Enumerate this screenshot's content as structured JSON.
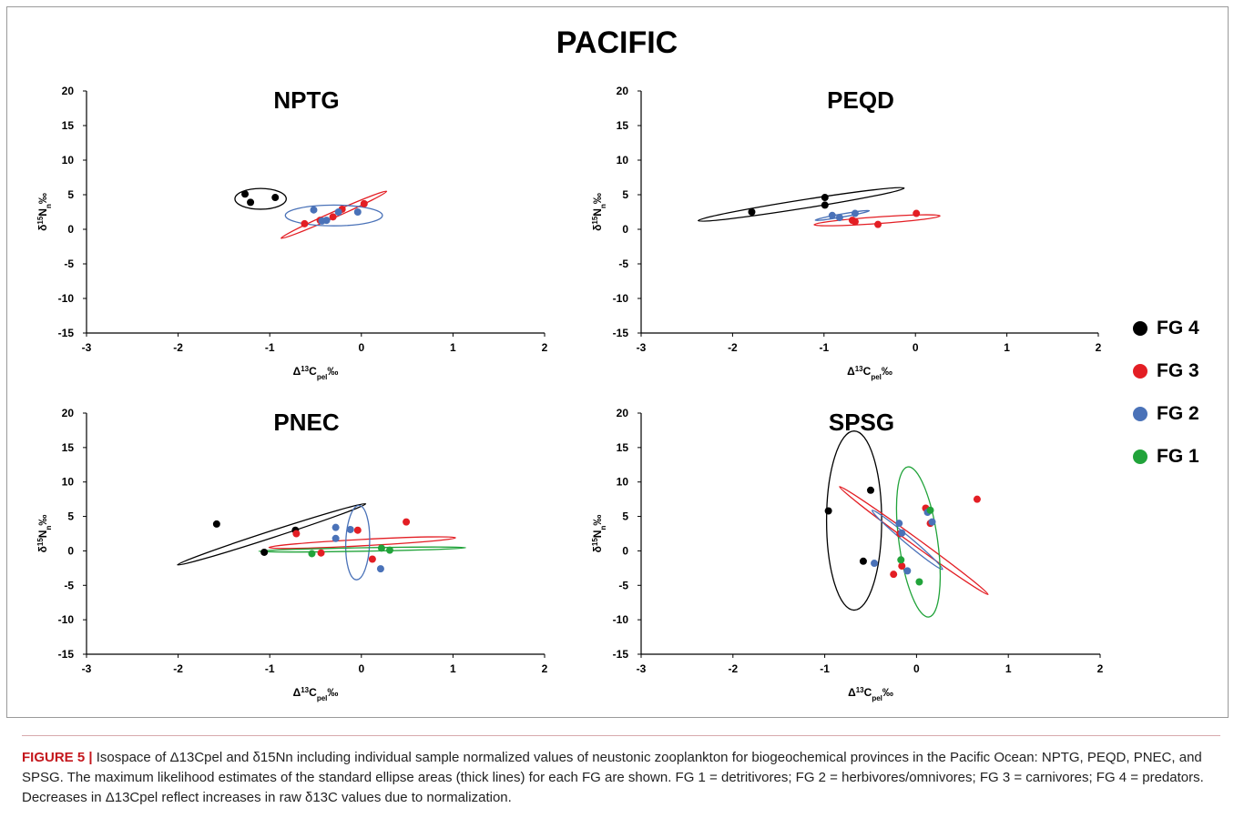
{
  "figure_title": "PACIFIC",
  "legend": [
    {
      "label": "FG 4",
      "color": "#000000"
    },
    {
      "label": "FG 3",
      "color": "#e31e24"
    },
    {
      "label": "FG 2",
      "color": "#4a72b8"
    },
    {
      "label": "FG 1",
      "color": "#21a33a"
    }
  ],
  "caption": {
    "label": "FIGURE 5",
    "separator": "|",
    "text": "Isospace of Δ13Cpel and δ15Nn including individual sample normalized values of neustonic zooplankton for biogeochemical provinces in the Pacific Ocean: NPTG, PEQD, PNEC, and SPSG. The maximum likelihood estimates of the standard ellipse areas (thick lines) for each FG are shown. FG 1 = detritivores; FG 2 = herbivores/omnivores; FG 3 = carnivores; FG 4 = predators. Decreases in Δ13Cpel reflect increases in raw δ13C values due to normalization."
  },
  "chart_data": [
    {
      "type": "scatter",
      "title": "NPTG",
      "xlabel": "Δ13Cpel‰",
      "ylabel": "δ15Nn‰",
      "xlim": [
        -3,
        2
      ],
      "ylim": [
        -15,
        20
      ],
      "xticks": [
        -3,
        -2,
        -1,
        0,
        1,
        2
      ],
      "yticks": [
        -15,
        -10,
        -5,
        0,
        5,
        10,
        15,
        20
      ],
      "series": [
        {
          "name": "FG 4",
          "color": "#000000",
          "points": [
            [
              -1.27,
              5.1
            ],
            [
              -1.21,
              3.9
            ],
            [
              -0.94,
              4.6
            ]
          ],
          "ellipse": {
            "cx": -1.1,
            "cy": 4.4,
            "rx": 0.28,
            "ry": 1.5,
            "angle_deg": 0
          }
        },
        {
          "name": "FG 3",
          "color": "#e31e24",
          "points": [
            [
              -0.62,
              0.8
            ],
            [
              -0.45,
              1.3
            ],
            [
              -0.31,
              1.8
            ],
            [
              -0.21,
              2.9
            ],
            [
              0.03,
              3.7
            ]
          ],
          "ellipse": {
            "cx": -0.3,
            "cy": 2.1,
            "rx": 0.63,
            "ry": 0.42,
            "angle_deg": 24
          }
        },
        {
          "name": "FG 2",
          "color": "#4a72b8",
          "points": [
            [
              -0.52,
              2.8
            ],
            [
              -0.43,
              1.2
            ],
            [
              -0.38,
              1.3
            ],
            [
              -0.25,
              2.5
            ],
            [
              -0.04,
              2.5
            ]
          ],
          "ellipse": {
            "cx": -0.3,
            "cy": 2.0,
            "rx": 0.53,
            "ry": 1.5,
            "angle_deg": 0
          }
        }
      ]
    },
    {
      "type": "scatter",
      "title": "PEQD",
      "xlabel": "Δ13Cpel‰",
      "ylabel": "δ15Nn‰",
      "xlim": [
        -3,
        2
      ],
      "ylim": [
        -15,
        20
      ],
      "xticks": [
        -3,
        -2,
        -1,
        0,
        1,
        2
      ],
      "yticks": [
        -15,
        -10,
        -5,
        0,
        5,
        10,
        15,
        20
      ],
      "series": [
        {
          "name": "FG 4",
          "color": "#000000",
          "points": [
            [
              -1.79,
              2.5
            ],
            [
              -0.99,
              3.5
            ],
            [
              -0.99,
              4.6
            ]
          ],
          "ellipse": {
            "cx": -1.25,
            "cy": 3.6,
            "rx": 1.14,
            "ry": 0.62,
            "angle_deg": 9
          }
        },
        {
          "name": "FG 3",
          "color": "#e31e24",
          "points": [
            [
              -0.69,
              1.3
            ],
            [
              -0.66,
              1.1
            ],
            [
              -0.41,
              0.7
            ],
            [
              0.01,
              2.3
            ]
          ],
          "ellipse": {
            "cx": -0.42,
            "cy": 1.3,
            "rx": 0.69,
            "ry": 0.48,
            "angle_deg": 4
          }
        },
        {
          "name": "FG 2",
          "color": "#4a72b8",
          "points": [
            [
              -0.91,
              2.0
            ],
            [
              -0.83,
              1.7
            ],
            [
              -0.66,
              2.3
            ]
          ],
          "ellipse": {
            "cx": -0.8,
            "cy": 2.0,
            "rx": 0.3,
            "ry": 0.22,
            "angle_deg": 10
          }
        }
      ]
    },
    {
      "type": "scatter",
      "title": "PNEC",
      "xlabel": "Δ13Cpel‰",
      "ylabel": "δ15Nn‰",
      "xlim": [
        -3,
        2
      ],
      "ylim": [
        -15,
        20
      ],
      "xticks": [
        -3,
        -2,
        -1,
        0,
        1,
        2
      ],
      "yticks": [
        -15,
        -10,
        -5,
        0,
        5,
        10,
        15,
        20
      ],
      "series": [
        {
          "name": "FG 4",
          "color": "#000000",
          "points": [
            [
              -1.58,
              3.9
            ],
            [
              -1.06,
              -0.2
            ],
            [
              -0.72,
              3.0
            ]
          ],
          "ellipse": {
            "cx": -0.98,
            "cy": 2.4,
            "rx": 1.08,
            "ry": 0.5,
            "angle_deg": 18
          }
        },
        {
          "name": "FG 3",
          "color": "#e31e24",
          "points": [
            [
              -0.71,
              2.5
            ],
            [
              -0.44,
              -0.3
            ],
            [
              -0.04,
              3.0
            ],
            [
              0.12,
              -1.2
            ],
            [
              0.49,
              4.2
            ]
          ],
          "ellipse": {
            "cx": 0.01,
            "cy": 1.2,
            "rx": 1.02,
            "ry": 0.46,
            "angle_deg": 3
          }
        },
        {
          "name": "FG 2",
          "color": "#4a72b8",
          "points": [
            [
              -0.28,
              3.4
            ],
            [
              -0.28,
              1.8
            ],
            [
              -0.12,
              3.1
            ],
            [
              0.21,
              -2.6
            ]
          ],
          "ellipse": {
            "cx": -0.04,
            "cy": 1.2,
            "rx": 0.13,
            "ry": 5.4,
            "angle_deg": -2
          }
        },
        {
          "name": "FG 1",
          "color": "#21a33a",
          "points": [
            [
              -0.54,
              -0.4
            ],
            [
              0.22,
              0.4
            ],
            [
              0.31,
              0.1
            ]
          ],
          "ellipse": {
            "cx": 0.01,
            "cy": 0.2,
            "rx": 1.13,
            "ry": 0.25,
            "angle_deg": 1
          }
        }
      ]
    },
    {
      "type": "scatter",
      "title": "SPSG",
      "xlabel": "Δ13Cpel‰",
      "ylabel": "δ15Nn‰",
      "xlim": [
        -3,
        2
      ],
      "ylim": [
        -15,
        20
      ],
      "xticks": [
        -3,
        -2,
        -1,
        0,
        1,
        2
      ],
      "yticks": [
        -15,
        -10,
        -5,
        0,
        5,
        10,
        15,
        20
      ],
      "series": [
        {
          "name": "FG 4",
          "color": "#000000",
          "points": [
            [
              -0.96,
              5.8
            ],
            [
              -0.5,
              8.8
            ],
            [
              -0.58,
              -1.5
            ]
          ],
          "ellipse": {
            "cx": -0.68,
            "cy": 4.4,
            "rx": 0.3,
            "ry": 13.0,
            "angle_deg": 0
          }
        },
        {
          "name": "FG 3",
          "color": "#e31e24",
          "points": [
            [
              -0.25,
              -3.4
            ],
            [
              -0.18,
              2.5
            ],
            [
              -0.16,
              -2.2
            ],
            [
              0.1,
              6.2
            ],
            [
              0.15,
              4.0
            ],
            [
              0.66,
              7.5
            ]
          ],
          "ellipse": {
            "cx": -0.03,
            "cy": 1.5,
            "rx": 1.0,
            "ry": 0.52,
            "angle_deg": -36
          }
        },
        {
          "name": "FG 2",
          "color": "#4a72b8",
          "points": [
            [
              -0.46,
              -1.8
            ],
            [
              -0.19,
              4.0
            ],
            [
              -0.16,
              2.6
            ],
            [
              -0.1,
              -2.9
            ],
            [
              0.12,
              5.6
            ],
            [
              0.17,
              4.2
            ]
          ],
          "ellipse": {
            "cx": -0.1,
            "cy": 1.6,
            "rx": 0.5,
            "ry": 0.5,
            "angle_deg": -40
          }
        },
        {
          "name": "FG 1",
          "color": "#21a33a",
          "points": [
            [
              -0.17,
              -1.3
            ],
            [
              0.03,
              -4.5
            ],
            [
              0.15,
              5.9
            ]
          ],
          "ellipse": {
            "cx": 0.02,
            "cy": 1.3,
            "rx": 0.21,
            "ry": 11.0,
            "angle_deg": 8
          }
        }
      ]
    }
  ]
}
